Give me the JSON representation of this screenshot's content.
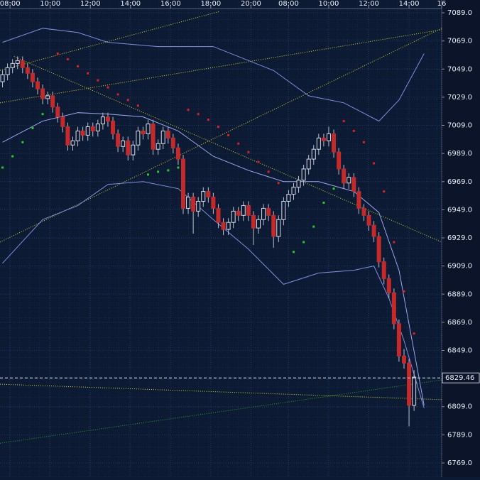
{
  "chart_data": {
    "type": "candlestick",
    "x": [
      0,
      1,
      2,
      3,
      4,
      5,
      6,
      7,
      8,
      9,
      10,
      11,
      12,
      13,
      14,
      15,
      16,
      17,
      18,
      19,
      20,
      21,
      22,
      23,
      24,
      25,
      26,
      27,
      28,
      29,
      30,
      31,
      32,
      33,
      34,
      35,
      36,
      37,
      38,
      39,
      40,
      41,
      42,
      43,
      44,
      45,
      46,
      47,
      48,
      49,
      50,
      51,
      52,
      53,
      54,
      55,
      56,
      57,
      58,
      59,
      60,
      61,
      62,
      63,
      64,
      65,
      66,
      67,
      68,
      69,
      70,
      71,
      72,
      73,
      74,
      75,
      76,
      77,
      78,
      79,
      80,
      81,
      82
    ],
    "open": [
      7040,
      7045,
      7050,
      7053,
      7055,
      7050,
      7046,
      7040,
      7035,
      7028,
      7030,
      7022,
      7015,
      7008,
      6995,
      6998,
      7005,
      7002,
      7008,
      7005,
      7010,
      7015,
      7012,
      7003,
      6994,
      6998,
      6988,
      6995,
      7005,
      7003,
      7010,
      6992,
      6996,
      7005,
      7000,
      6993,
      6985,
      6950,
      6958,
      6948,
      6955,
      6962,
      6958,
      6950,
      6940,
      6935,
      6940,
      6948,
      6945,
      6952,
      6945,
      6936,
      6942,
      6950,
      6945,
      6930,
      6942,
      6955,
      6960,
      6965,
      6970,
      6978,
      6985,
      6992,
      7000,
      6998,
      7003,
      6990,
      6978,
      6968,
      6972,
      6962,
      6950,
      6945,
      6938,
      6930,
      6912,
      6900,
      6890,
      6868,
      6845,
      6840,
      6810
    ],
    "high": [
      7048,
      7053,
      7056,
      7058,
      7058,
      7053,
      7049,
      7043,
      7038,
      7033,
      7033,
      7025,
      7018,
      7011,
      7001,
      7008,
      7008,
      7011,
      7011,
      7013,
      7018,
      7018,
      7015,
      7006,
      7001,
      7001,
      6998,
      7008,
      7008,
      7013,
      7013,
      6999,
      7008,
      7008,
      7003,
      6996,
      6988,
      6961,
      6961,
      6958,
      6965,
      6965,
      6961,
      6953,
      6943,
      6943,
      6951,
      6951,
      6955,
      6955,
      6948,
      6945,
      6953,
      6953,
      6948,
      6945,
      6958,
      6963,
      6968,
      6973,
      6981,
      6988,
      6995,
      7003,
      7003,
      7008,
      7006,
      6993,
      6981,
      6975,
      6975,
      6965,
      6953,
      6948,
      6941,
      6933,
      6915,
      6903,
      6893,
      6871,
      6850,
      6843,
      6835
    ],
    "low": [
      7036,
      7041,
      7046,
      7049,
      7046,
      7042,
      7036,
      7031,
      7024,
      7024,
      7018,
      7011,
      7004,
      6991,
      6991,
      6994,
      6998,
      6998,
      7001,
      7001,
      7006,
      7008,
      6999,
      6990,
      6990,
      6984,
      6984,
      6991,
      6999,
      6999,
      6988,
      6988,
      6992,
      6996,
      6989,
      6981,
      6946,
      6946,
      6932,
      6944,
      6951,
      6954,
      6946,
      6936,
      6931,
      6931,
      6936,
      6941,
      6941,
      6941,
      6924,
      6932,
      6938,
      6941,
      6922,
      6926,
      6938,
      6951,
      6956,
      6961,
      6966,
      6974,
      6981,
      6988,
      6994,
      6994,
      6986,
      6974,
      6964,
      6964,
      6958,
      6946,
      6941,
      6934,
      6926,
      6908,
      6896,
      6886,
      6864,
      6841,
      6836,
      6795,
      6806
    ],
    "close": [
      7045,
      7050,
      7053,
      7055,
      7050,
      7046,
      7040,
      7035,
      7028,
      7030,
      7022,
      7015,
      7008,
      6995,
      6998,
      7005,
      7002,
      7008,
      7005,
      7010,
      7015,
      7012,
      7003,
      6994,
      6998,
      6988,
      6995,
      7005,
      7003,
      7010,
      6992,
      6996,
      7005,
      7000,
      6993,
      6985,
      6950,
      6958,
      6948,
      6955,
      6962,
      6958,
      6950,
      6940,
      6935,
      6940,
      6948,
      6945,
      6952,
      6945,
      6936,
      6942,
      6950,
      6945,
      6930,
      6942,
      6955,
      6960,
      6965,
      6970,
      6978,
      6985,
      6992,
      7000,
      6998,
      7003,
      6990,
      6978,
      6968,
      6972,
      6962,
      6950,
      6945,
      6938,
      6930,
      6912,
      6900,
      6890,
      6868,
      6845,
      6840,
      6810,
      6830
    ],
    "up_color": "#d8dde8",
    "down_color": "#c42a2a",
    "xlim": [
      -0.5,
      87.5
    ],
    "xticks": [
      {
        "value": 1.5,
        "label": "08:00"
      },
      {
        "value": 9.5,
        "label": "10:00"
      },
      {
        "value": 17.5,
        "label": "12:00"
      },
      {
        "value": 25.5,
        "label": "14:00"
      },
      {
        "value": 33.5,
        "label": "16:00"
      },
      {
        "value": 41.5,
        "label": "18:00"
      },
      {
        "value": 49.5,
        "label": "20:00"
      },
      {
        "value": 57,
        "label": "08:00"
      },
      {
        "value": 65,
        "label": "10:00"
      },
      {
        "value": 73,
        "label": "12:00"
      },
      {
        "value": 81,
        "label": "14:00"
      },
      {
        "value": 87.5,
        "label": "16"
      }
    ],
    "ylim": [
      6758.9,
      7098.1
    ],
    "yticks": [
      {
        "value": 6769,
        "label": "6769.0"
      },
      {
        "value": 6789,
        "label": "6789.0"
      },
      {
        "value": 6809,
        "label": "6809.0"
      },
      {
        "value": 6829,
        "label": "6829.0"
      },
      {
        "value": 6849,
        "label": "6849.0"
      },
      {
        "value": 6869,
        "label": "6869.0"
      },
      {
        "value": 6889,
        "label": "6889.0"
      },
      {
        "value": 6909,
        "label": "6909.0"
      },
      {
        "value": 6929,
        "label": "6929.0"
      },
      {
        "value": 6949,
        "label": "6949.0"
      },
      {
        "value": 6969,
        "label": "6969.0"
      },
      {
        "value": 6989,
        "label": "6989.0"
      },
      {
        "value": 7009,
        "label": "7009.0"
      },
      {
        "value": 7029,
        "label": "7029.0"
      },
      {
        "value": 7049,
        "label": "7049.0"
      },
      {
        "value": 7069,
        "label": "7069.0"
      },
      {
        "value": 7089,
        "label": "7089.0"
      }
    ],
    "grid": true,
    "bands": [
      {
        "color": "#7f8fe0",
        "x": [
          0,
          8,
          15,
          21,
          31,
          42,
          54,
          61,
          68,
          75,
          79,
          84
        ],
        "values": [
          7068,
          7078,
          7075,
          7068,
          7065,
          7065,
          7048,
          7030,
          7025,
          7012,
          7027,
          7060
        ]
      },
      {
        "color": "#9aa8f0",
        "x": [
          0,
          8,
          15,
          21,
          28,
          35,
          42,
          49,
          56,
          63,
          70,
          75,
          79,
          84
        ],
        "values": [
          6997,
          7012,
          7018,
          7017,
          7015,
          7005,
          6987,
          6977,
          6969,
          6969,
          6962,
          6947,
          6906,
          6810
        ]
      },
      {
        "color": "#7f8fe0",
        "x": [
          0,
          8,
          15,
          21,
          28,
          35,
          42,
          49,
          56,
          63,
          70,
          74,
          77,
          80,
          84
        ],
        "values": [
          6911,
          6942,
          6952,
          6967,
          6969,
          6964,
          6942,
          6921,
          6896,
          6904,
          6906,
          6909,
          6886,
          6856,
          6808
        ]
      }
    ],
    "sar": [
      {
        "color": "#e02020",
        "x": [
          11,
          13,
          15,
          17,
          19,
          21,
          23,
          25,
          27
        ],
        "values": [
          7060,
          7056,
          7051,
          7046,
          7041,
          7036,
          7031,
          7027,
          7023
        ]
      },
      {
        "color": "#e02020",
        "x": [
          37,
          39,
          41,
          43,
          45,
          47,
          49,
          51,
          53,
          55
        ],
        "values": [
          7020,
          7017,
          7013,
          7008,
          7002,
          6996,
          6990,
          6983,
          6976,
          6968
        ]
      },
      {
        "color": "#e02020",
        "x": [
          68,
          70,
          72,
          74,
          76,
          78,
          80,
          82
        ],
        "values": [
          7012,
          7005,
          6997,
          6982,
          6962,
          6926,
          6891,
          6861
        ]
      },
      {
        "color": "#22cc22",
        "x": [
          0,
          2,
          4,
          6,
          8
        ],
        "values": [
          6979,
          6987,
          6997,
          7007,
          7017
        ]
      },
      {
        "color": "#22cc22",
        "x": [
          29,
          31,
          33,
          35
        ],
        "values": [
          6974,
          6976,
          6977,
          6979
        ]
      },
      {
        "color": "#22cc22",
        "x": [
          58,
          60,
          62,
          64,
          66
        ],
        "values": [
          6919,
          6926,
          6937,
          6954,
          6964
        ]
      }
    ],
    "trendlines": [
      {
        "color": "#d8d820",
        "x": [
          -0.5,
          87.5
        ],
        "values": [
          7025,
          7077
        ]
      },
      {
        "color": "#d8d820",
        "x": [
          -0.5,
          87.5
        ],
        "values": [
          6926,
          7078
        ]
      },
      {
        "color": "#d8d820",
        "x": [
          2.3,
          87.5
        ],
        "values": [
          7058,
          6926
        ]
      },
      {
        "color": "#d8d820",
        "x": [
          -0.5,
          43.3
        ],
        "values": [
          7048,
          7090
        ]
      },
      {
        "color": "#d8d820",
        "x": [
          -0.5,
          87.5
        ],
        "values": [
          6825,
          6814
        ]
      },
      {
        "color": "#22aa22",
        "x": [
          -0.5,
          87.5
        ],
        "values": [
          6783,
          6828
        ]
      }
    ],
    "current_price": 6829.46
  }
}
